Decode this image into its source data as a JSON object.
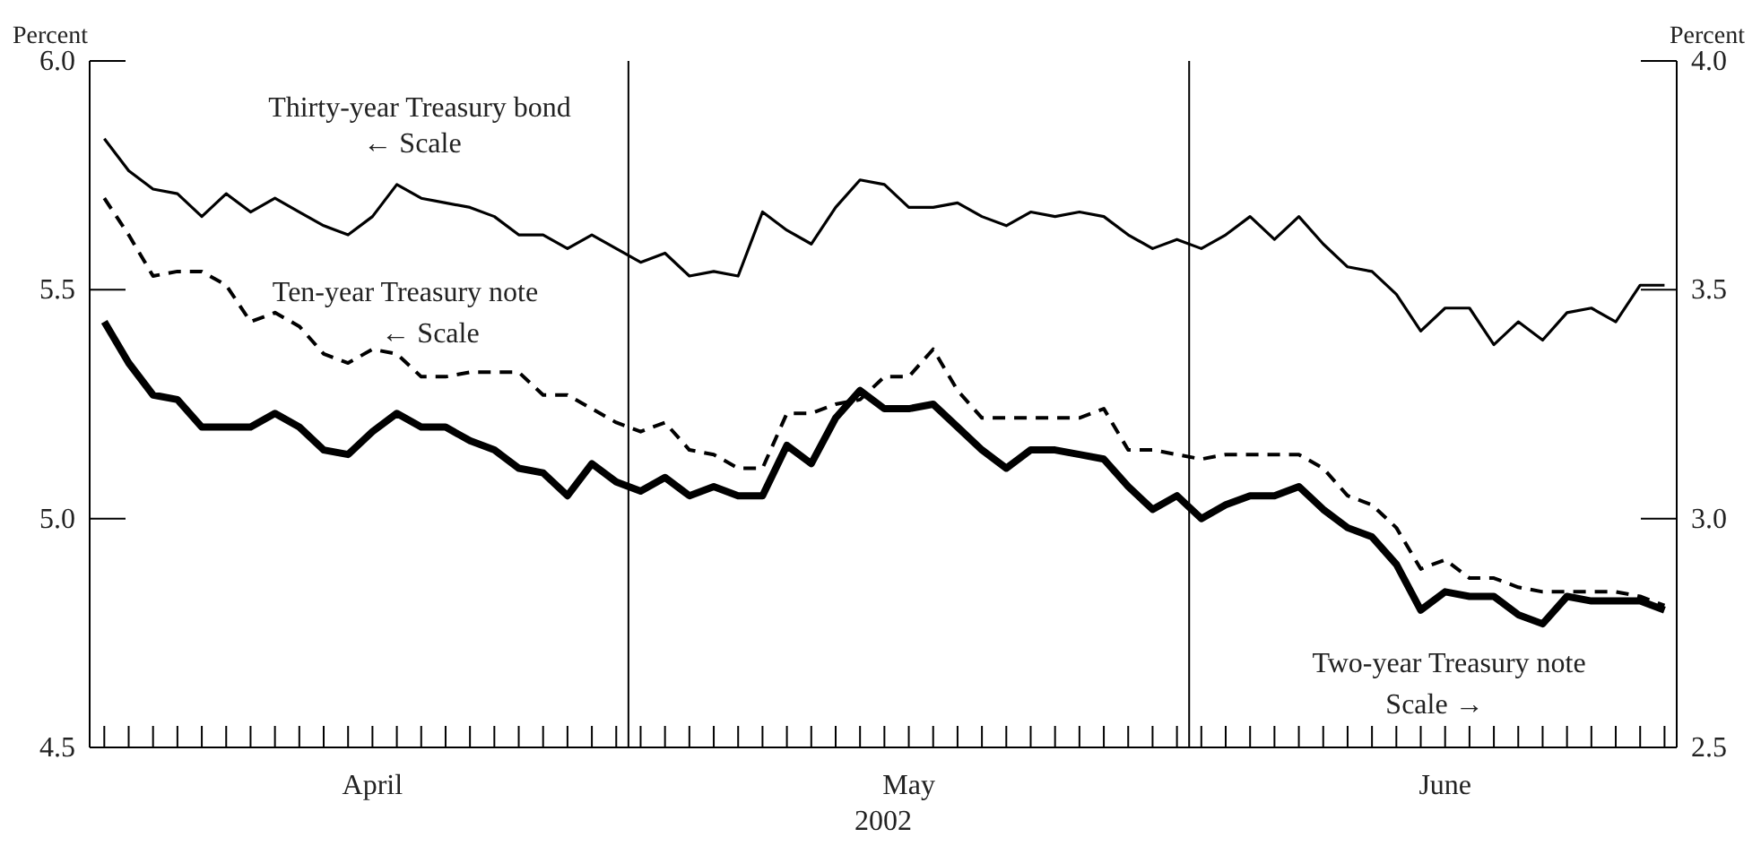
{
  "chart_data": {
    "type": "line",
    "xlabel": "2002",
    "ylabel": "Percent",
    "y2label": "Percent",
    "categories": [
      null,
      null,
      null,
      null,
      null,
      null,
      null,
      null,
      null,
      null,
      null,
      "April",
      null,
      null,
      null,
      null,
      null,
      null,
      null,
      null,
      null,
      null,
      null,
      null,
      null,
      null,
      null,
      null,
      null,
      null,
      null,
      null,
      null,
      "May",
      null,
      null,
      null,
      null,
      null,
      null,
      null,
      null,
      null,
      null,
      null,
      null,
      null,
      null,
      null,
      null,
      null,
      null,
      null,
      null,
      null,
      "June",
      null,
      null,
      null,
      null,
      null,
      null,
      null,
      null,
      null
    ],
    "series": [
      {
        "name": "Thirty-year Treasury bond",
        "color": "#000000",
        "line_style": "solid",
        "values": [
          5.83,
          5.76,
          5.72,
          5.71,
          5.66,
          5.71,
          5.67,
          5.7,
          5.67,
          5.64,
          5.62,
          5.66,
          5.73,
          5.7,
          5.69,
          5.68,
          5.66,
          5.62,
          5.62,
          5.59,
          5.62,
          5.59,
          5.56,
          5.58,
          5.53,
          5.54,
          5.53,
          5.67,
          5.63,
          5.6,
          5.68,
          5.74,
          5.73,
          5.68,
          5.68,
          5.69,
          5.66,
          5.64,
          5.67,
          5.66,
          5.67,
          5.66,
          5.62,
          5.59,
          5.61,
          5.59,
          5.62,
          5.66,
          5.61,
          5.66,
          5.6,
          5.55,
          5.54,
          5.49,
          5.41,
          5.46,
          5.46,
          5.38,
          5.43,
          5.39,
          5.45,
          5.46,
          5.43,
          5.51,
          5.51
        ]
      },
      {
        "name": "Ten-year Treasury note",
        "color": "#000000",
        "line_style": "dashed",
        "values": [
          5.7,
          5.62,
          5.53,
          5.54,
          5.54,
          5.51,
          5.43,
          5.45,
          5.42,
          5.36,
          5.34,
          5.37,
          5.36,
          5.31,
          5.31,
          5.32,
          5.32,
          5.32,
          5.27,
          5.27,
          5.24,
          5.21,
          5.19,
          5.21,
          5.15,
          5.14,
          5.11,
          5.11,
          5.23,
          5.23,
          5.25,
          5.26,
          5.31,
          5.31,
          5.37,
          5.28,
          5.22,
          5.22,
          5.22,
          5.22,
          5.22,
          5.24,
          5.15,
          5.15,
          5.14,
          5.13,
          5.14,
          5.14,
          5.14,
          5.14,
          5.11,
          5.05,
          5.03,
          4.98,
          4.89,
          4.91,
          4.87,
          4.87,
          4.85,
          4.84,
          4.84,
          4.84,
          4.84,
          4.83,
          4.81
        ]
      },
      {
        "name": "Two-year Treasury note",
        "color": "#000000",
        "line_style": "solid",
        "axis": "y2",
        "values": [
          3.43,
          3.34,
          3.27,
          3.26,
          3.2,
          3.2,
          3.2,
          3.23,
          3.2,
          3.15,
          3.14,
          3.19,
          3.23,
          3.2,
          3.2,
          3.17,
          3.15,
          3.11,
          3.1,
          3.05,
          3.12,
          3.08,
          3.06,
          3.09,
          3.05,
          3.07,
          3.05,
          3.05,
          3.16,
          3.12,
          3.22,
          3.28,
          3.24,
          3.24,
          3.25,
          3.2,
          3.15,
          3.11,
          3.15,
          3.15,
          3.14,
          3.13,
          3.07,
          3.02,
          3.05,
          3.0,
          3.03,
          3.05,
          3.05,
          3.07,
          3.02,
          2.98,
          2.96,
          2.9,
          2.8,
          2.84,
          2.83,
          2.83,
          2.79,
          2.77,
          2.83,
          2.82,
          2.82,
          2.82,
          2.8
        ]
      }
    ],
    "annotations": [
      "← Scale",
      "← Scale",
      "Scale →"
    ],
    "ylim": [
      4.5,
      6.0
    ],
    "yticks": [
      {
        "value": 4.5,
        "label": "4.5"
      },
      {
        "value": 5,
        "label": "5.0"
      },
      {
        "value": 5.5,
        "label": "5.5"
      },
      {
        "value": 6,
        "label": "6.0"
      }
    ],
    "y2lim": [
      2.5,
      4.0
    ],
    "y2ticks": [
      {
        "value": 2.5,
        "label": "2.5"
      },
      {
        "value": 3,
        "label": "3.0"
      },
      {
        "value": 3.5,
        "label": "3.5"
      },
      {
        "value": 4,
        "label": "4.0"
      }
    ],
    "marker": "none"
  }
}
